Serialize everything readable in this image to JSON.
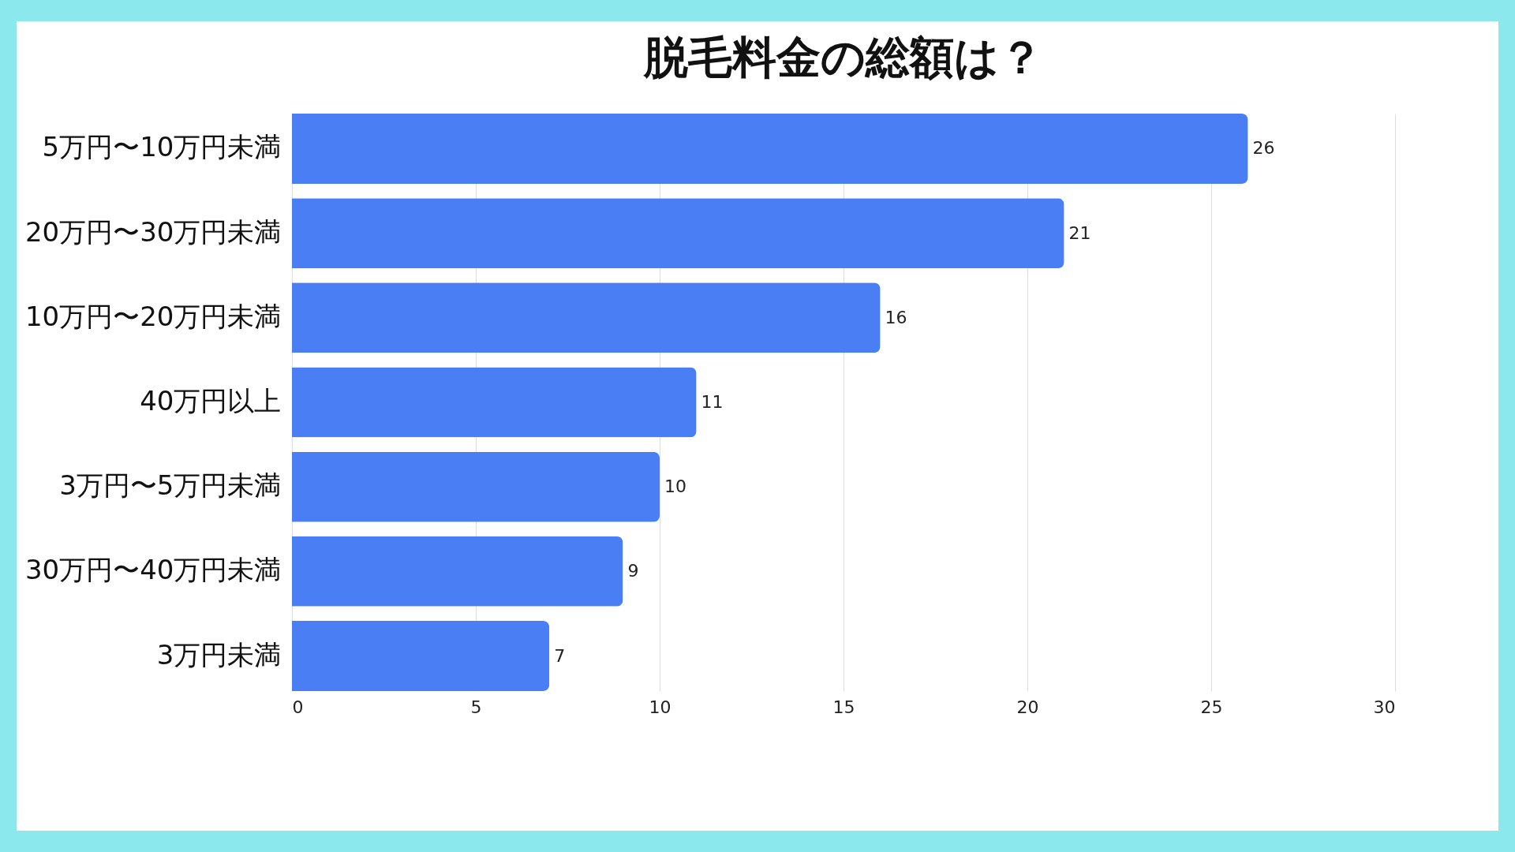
{
  "chart_data": {
    "type": "bar",
    "orientation": "horizontal",
    "title": "脱毛料金の総額は？",
    "categories": [
      "5万円〜10万円未満",
      "20万円〜30万円未満",
      "10万円〜20万円未満",
      "40万円以上",
      "3万円〜5万円未満",
      "30万円〜40万円未満",
      "3万円未満"
    ],
    "values": [
      26,
      21,
      16,
      11,
      10,
      9,
      7
    ],
    "color": "#4a7ef5",
    "xlim": [
      0,
      30
    ],
    "xticks": [
      0,
      5,
      10,
      15,
      20,
      25,
      30
    ],
    "grid": "x",
    "data_labels": true
  }
}
